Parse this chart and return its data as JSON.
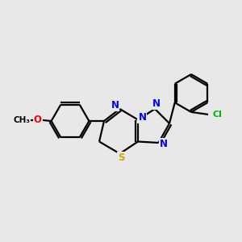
{
  "background_color": "#e8e8e8",
  "bond_color": "#000000",
  "bond_width": 1.6,
  "atom_colors": {
    "N": "#0000ff",
    "S": "#ccaa00",
    "O": "#ff0000",
    "Cl": "#00bb00",
    "C": "#000000"
  },
  "figsize": [
    3.0,
    3.0
  ],
  "dpi": 100
}
